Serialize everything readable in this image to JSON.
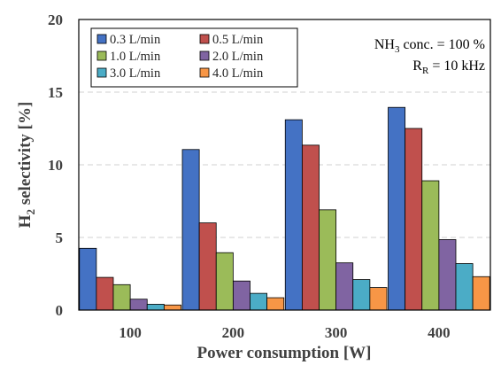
{
  "chart_data": {
    "type": "bar",
    "categories": [
      "100",
      "200",
      "300",
      "400"
    ],
    "series": [
      {
        "name": "0.3 L/min",
        "color": "#4472C4",
        "values": [
          4.25,
          11.05,
          13.1,
          13.95
        ]
      },
      {
        "name": "0.5 L/min",
        "color": "#C0504D",
        "values": [
          2.25,
          6.0,
          11.35,
          12.5
        ]
      },
      {
        "name": "1.0 L/min",
        "color": "#9BBB59",
        "values": [
          1.75,
          3.95,
          6.9,
          8.9
        ]
      },
      {
        "name": "2.0 L/min",
        "color": "#8064A2",
        "values": [
          0.75,
          2.0,
          3.25,
          4.85
        ]
      },
      {
        "name": "3.0 L/min",
        "color": "#4BACC6",
        "values": [
          0.4,
          1.15,
          2.1,
          3.2
        ]
      },
      {
        "name": "4.0 L/min",
        "color": "#F79646",
        "values": [
          0.35,
          0.85,
          1.55,
          2.3
        ]
      }
    ],
    "xlabel": "Power consumption [W]",
    "ylabel_main": "H",
    "ylabel_sub": "2",
    "ylabel_rest": " selectivity [%]",
    "ylim": [
      0,
      20
    ],
    "yticks": [
      "0",
      "5",
      "10",
      "15",
      "20"
    ],
    "grid": "horizontal dashed",
    "legend_placement": "top-left",
    "annotations": {
      "line1_main": "NH",
      "line1_sub": "3",
      "line1_rest": " conc. = 100 %",
      "line2_main": "R",
      "line2_sub": "R",
      "line2_rest": " = 10 kHz"
    }
  }
}
